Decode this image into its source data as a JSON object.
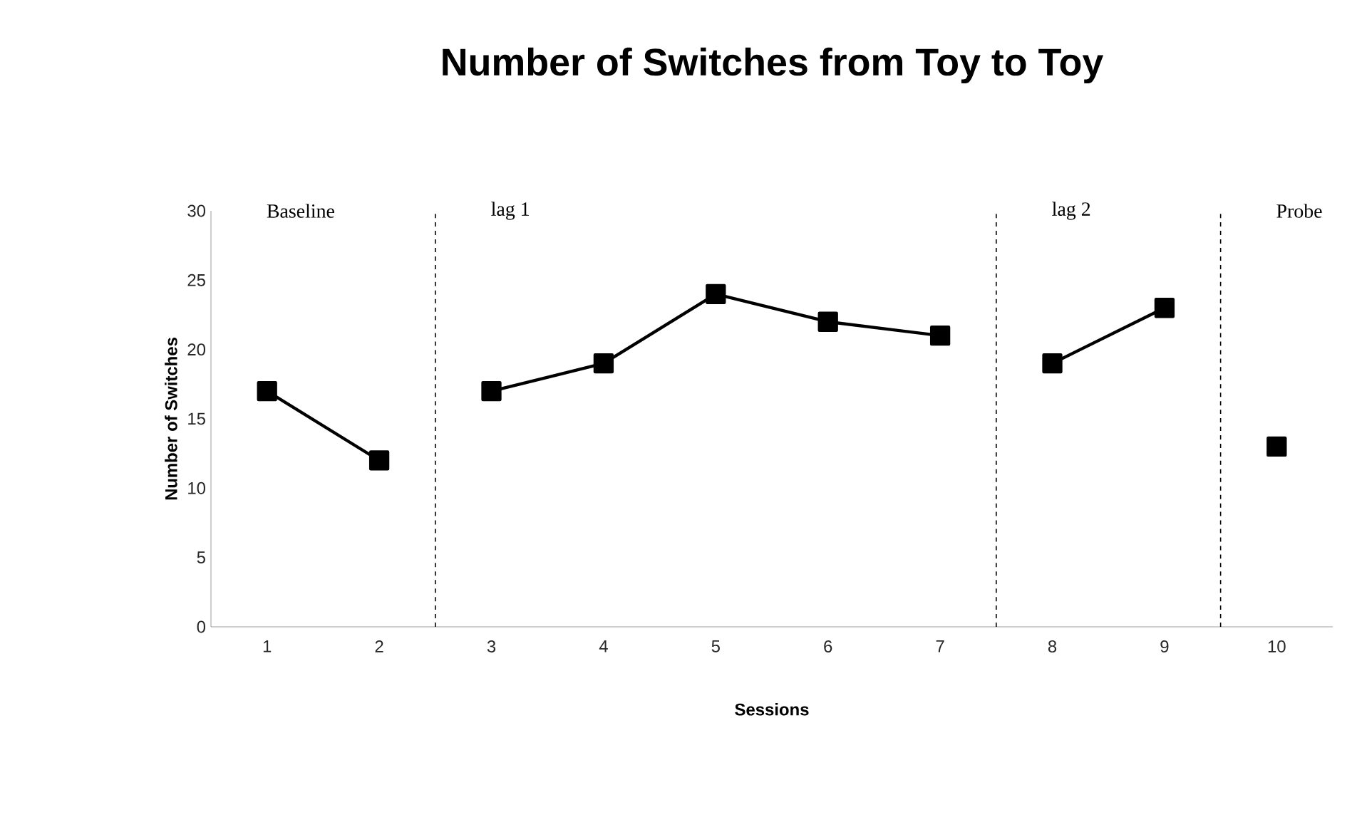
{
  "chart_data": {
    "type": "line",
    "title": "Number of Switches from Toy to Toy",
    "xlabel": "Sessions",
    "ylabel": "Number of Switches",
    "xlim": [
      0.5,
      10.5
    ],
    "xticks": [
      1,
      2,
      3,
      4,
      5,
      6,
      7,
      8,
      9,
      10
    ],
    "ylim": [
      0,
      30
    ],
    "yticks": [
      0,
      5,
      10,
      15,
      20,
      25,
      30
    ],
    "marker": "square",
    "grid": false,
    "series": [
      {
        "color": "#000000",
        "x": [
          1,
          2
        ],
        "values": [
          17,
          12
        ]
      },
      {
        "color": "#000000",
        "x": [
          3,
          4,
          5,
          6,
          7
        ],
        "values": [
          17,
          19,
          24,
          22,
          21
        ]
      },
      {
        "color": "#000000",
        "x": [
          8,
          9
        ],
        "values": [
          19,
          23
        ]
      },
      {
        "color": "#000000",
        "x": [
          10
        ],
        "values": [
          13
        ]
      }
    ],
    "ref_lines": [
      {
        "axis": "x",
        "value": 2.5,
        "color": "#000000",
        "line_style": "dashed"
      },
      {
        "axis": "x",
        "value": 7.5,
        "color": "#000000",
        "line_style": "dashed"
      },
      {
        "axis": "x",
        "value": 9.5,
        "color": "#000000",
        "line_style": "dashed"
      }
    ],
    "annotations": [
      "Baseline",
      "lag 1",
      "lag 2",
      "Probe"
    ]
  }
}
